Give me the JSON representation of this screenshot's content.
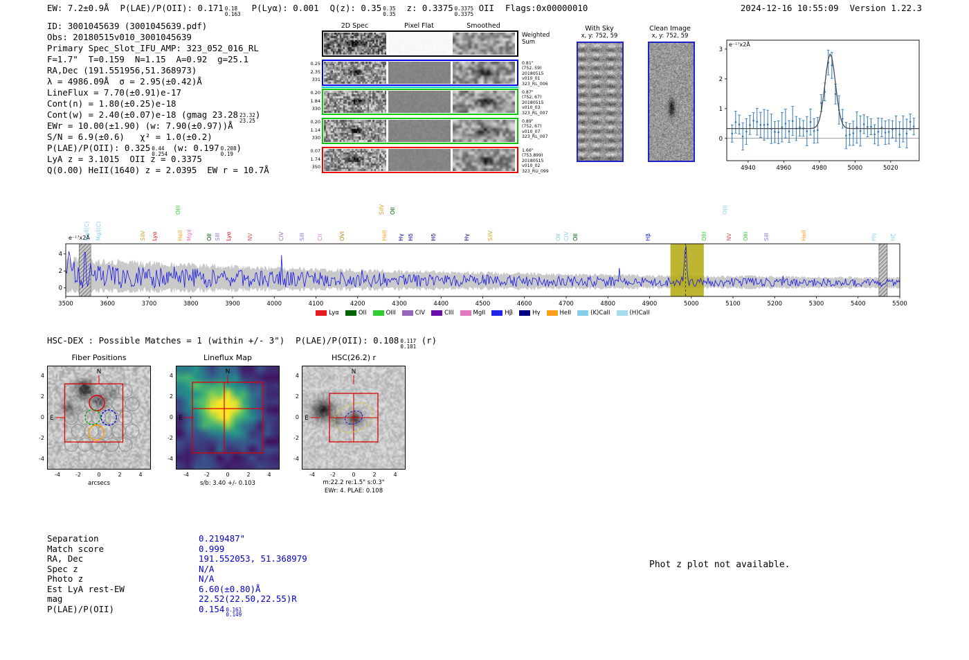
{
  "header": {
    "ew": "EW: 7.2±0.9Å",
    "plae_label": "P(LAE)/P(OII):",
    "plae": {
      "main": "0.171",
      "hi": "0.18",
      "lo": "0.163"
    },
    "plya": "P(Lyα): 0.001",
    "qz_label": "Q(z):",
    "qz": {
      "main": "0.35",
      "hi": "0.35",
      "lo": "0.35"
    },
    "z_label": "z:",
    "z": {
      "main": "0.3375",
      "hi": "0.3375",
      "lo": "0.3375"
    },
    "z_type": "OII",
    "flags": "Flags:0x00000010",
    "datetime": "2024-12-16 10:55:09",
    "version": "Version 1.22.3"
  },
  "info": {
    "id": "ID: 3001045639 (3001045639.pdf)",
    "obs": "Obs: 20180515v010_3001045639",
    "primary": "Primary Spec_Slot_IFU_AMP: 323_052_016_RL",
    "fta": "F=1.7\"  T=0.159  N=1.15  A=0.92  g=25.1",
    "radec": "RA,Dec (191.551956,51.368973)",
    "lambda_sigma": "λ = 4986.09Å  σ = 2.95(±0.42)Å",
    "lineflux": "LineFlux = 7.70(±0.91)e-17",
    "cont_n": "Cont(n) = 1.80(±0.25)e-18",
    "cont_w": {
      "prefix": "Cont(w) = 2.40(±0.07)e-18 (gmag 23.28",
      "hi": "23.32",
      "lo": "23.25",
      "suffix": ")"
    },
    "ewr": "EWr = 10.00(±1.90) (w: 7.90(±0.97))Å",
    "sn_chi2": "S/N = 6.9(±0.6)   χ² = 1.0(±0.2)",
    "plae": {
      "prefix": "P(LAE)/P(OII): 0.325",
      "hi1": "0.44",
      "lo1": "0.254",
      "mid": " (w: 0.197",
      "hi2": "0.208",
      "lo2": "0.19",
      "suffix": ")"
    },
    "zline": "LyA z = 3.1015  OII z = 0.3375",
    "qline": "Q(0.00) HeII(1640) z = 2.0395  EW r = 10.7Å"
  },
  "spec2d": {
    "col_headers": [
      "2D Spec",
      "Pixel Flat",
      "Smoothed"
    ],
    "rows": [
      {
        "border": "#000000",
        "left": [],
        "right": [
          "Weighted",
          "Sum"
        ],
        "big_right": true
      },
      {
        "border": "#0000ee",
        "left": [
          "0.25",
          "2.35",
          "331"
        ],
        "right": [
          "0.81\"",
          "(752, 59)",
          "20180515",
          "v010_01",
          "323_RL_006"
        ]
      },
      {
        "border": "#00cc00",
        "topline": "#00cccc",
        "left": [
          "0.20",
          "1.84",
          "330"
        ],
        "right": [
          "0.87\"",
          "(752, 67)",
          "20180515",
          "v010_03",
          "323_RL_007"
        ]
      },
      {
        "border": "#00cc00",
        "left": [
          "0.20",
          "1.14",
          "330"
        ],
        "right": [
          "0.89\"",
          "(752, 67)",
          "v010_07",
          "323_RL_007"
        ]
      },
      {
        "border": "#ee0000",
        "left": [
          "0.07",
          "1.74",
          "350"
        ],
        "right": [
          "1.66\"",
          "(753.899)",
          "20180515",
          "v010_02",
          "323_RU_099"
        ]
      }
    ]
  },
  "withsky": {
    "title": "With Sky",
    "coords": "x, y: 752, 59"
  },
  "clean": {
    "title": "Clean Image",
    "coords": "x, y: 752, 59"
  },
  "hsc_dex": {
    "prefix": "HSC-DEX : Possible Matches = 1 (within +/- 3\")",
    "plae_label": "P(LAE)/P(OII):",
    "plae": {
      "main": "0.108",
      "hi": "0.117",
      "lo": "0.101"
    },
    "suffix": "(r)"
  },
  "cutouts": {
    "compass": {
      "n": "N",
      "e": "E"
    },
    "axis_ticks": [
      -4,
      -2,
      0,
      2,
      4
    ],
    "fiber": {
      "title": "Fiber Positions",
      "xlabel": "arcsecs"
    },
    "lineflux": {
      "title": "Lineflux Map",
      "caption": "s/b: 3.40 +/- 0.103"
    },
    "hsc": {
      "title": "HSC(26.2) r",
      "caption1": "m:22.2 re:1.5\" s:0.3\"",
      "caption2": "EWr: 4. PLAE: 0.108"
    }
  },
  "match_table": {
    "rows": [
      {
        "label": "Separation",
        "value": "0.219487\""
      },
      {
        "label": "Match score",
        "value": "0.999"
      },
      {
        "label": "RA, Dec",
        "value": "191.552053, 51.368979"
      },
      {
        "label": "Spec z",
        "value": "N/A"
      },
      {
        "label": "Photo z",
        "value": "N/A"
      },
      {
        "label": "Est LyA rest-EW",
        "value": "6.60(±0.80)Å"
      },
      {
        "label": "mag",
        "value": "22.52(22.50,22.55)R"
      },
      {
        "label": "P(LAE)/P(OII)",
        "value": "0.154",
        "hi": "0.161",
        "lo": "0.149"
      }
    ]
  },
  "photz_note": "Phot z plot not available.",
  "chart_data": [
    {
      "id": "emission-line-fit",
      "type": "line",
      "corner_label": "e⁻¹⁷x2Å",
      "xlim": [
        4928,
        5036
      ],
      "ylim": [
        -0.75,
        3.3
      ],
      "xticks": [
        4940,
        4960,
        4980,
        5000,
        5020
      ],
      "yticks": [
        0,
        1,
        2,
        3
      ],
      "series": [
        {
          "name": "observed spectrum",
          "style": "errorbar",
          "color": "#2e75b6",
          "continuum": 0.33,
          "noise_sigma": 0.27,
          "errorbar_size": 0.38,
          "step": 2
        },
        {
          "name": "gaussian fit",
          "style": "line",
          "color": "#4a4a4a",
          "center": 4986.09,
          "sigma": 2.95,
          "peak": 2.5,
          "continuum": 0.33
        }
      ]
    },
    {
      "id": "full-spectrum",
      "type": "line",
      "corner_label": "e⁻¹⁷x2Å",
      "xlim": [
        3500,
        5500
      ],
      "ylim": [
        -1.0,
        5.2
      ],
      "xticks": [
        3500,
        3600,
        3700,
        3800,
        3900,
        4000,
        4100,
        4200,
        4300,
        4400,
        4500,
        4600,
        4700,
        4800,
        4900,
        5000,
        5100,
        5200,
        5300,
        5400,
        5500
      ],
      "yticks": [
        0,
        2,
        4
      ],
      "line_color": "#1414e8",
      "error_band_color": "#c9c9c9",
      "emission_peak": {
        "center": 4986.09,
        "sigma": 2.95,
        "peak": 4.35
      },
      "highlight_band": {
        "x0": 4950,
        "x1": 5030,
        "color": "#b3a80c",
        "opacity": 0.85
      },
      "masked_bands": [
        [
          3532,
          3560
        ],
        [
          5450,
          5470
        ]
      ],
      "marker_wavelength": 4986.09,
      "line_labels": [
        {
          "wave": 3538,
          "label": "MgII(C)",
          "color": "#87ceeb",
          "raised": false
        },
        {
          "wave": 3566,
          "label": "MgII(C)",
          "color": "#87ceeb",
          "raised": false
        },
        {
          "wave": 3672,
          "label": "SiIV",
          "color": "#daa520",
          "raised": false
        },
        {
          "wave": 3700,
          "label": "Lyα",
          "color": "#e41a1c",
          "raised": false
        },
        {
          "wave": 3757,
          "label": "OIII",
          "color": "#32cd32",
          "raised": true
        },
        {
          "wave": 3762,
          "label": "HeII",
          "color": "#ff9d1c",
          "raised": false
        },
        {
          "wave": 3783,
          "label": "MgII",
          "color": "#e377c2",
          "raised": false
        },
        {
          "wave": 3832,
          "label": "OII",
          "color": "#006400",
          "raised": false
        },
        {
          "wave": 3852,
          "label": "SiII",
          "color": "#9370db",
          "raised": false
        },
        {
          "wave": 3878,
          "label": "Lyα",
          "color": "#e41a1c",
          "raised": false
        },
        {
          "wave": 3930,
          "label": "NV",
          "color": "#cd5c5c",
          "raised": false
        },
        {
          "wave": 4004,
          "label": "CIV",
          "color": "#9467bd",
          "raised": false
        },
        {
          "wave": 4055,
          "label": "SiII",
          "color": "#9370db",
          "raised": false
        },
        {
          "wave": 4098,
          "label": "CII",
          "color": "#da70d6",
          "raised": false
        },
        {
          "wave": 4150,
          "label": "OVI",
          "color": "#b8860b",
          "raised": false
        },
        {
          "wave": 4245,
          "label": "SiIV",
          "color": "#daa520",
          "raised": true
        },
        {
          "wave": 4252,
          "label": "HeII",
          "color": "#ff9d1c",
          "raised": false
        },
        {
          "wave": 4272,
          "label": "OII",
          "color": "#006400",
          "raised": true
        },
        {
          "wave": 4292,
          "label": "Hγ",
          "color": "#00007f",
          "raised": false
        },
        {
          "wave": 4315,
          "label": "Hδ",
          "color": "#00008b",
          "raised": false
        },
        {
          "wave": 4370,
          "label": "Hδ",
          "color": "#00008b",
          "raised": false
        },
        {
          "wave": 4450,
          "label": "Hγ",
          "color": "#00007f",
          "raised": false
        },
        {
          "wave": 4505,
          "label": "SiIV",
          "color": "#daa520",
          "raised": false
        },
        {
          "wave": 4668,
          "label": "OII",
          "color": "#87ceeb",
          "raised": false
        },
        {
          "wave": 4688,
          "label": "CIV",
          "color": "#87ceeb",
          "raised": false
        },
        {
          "wave": 4710,
          "label": "OII",
          "color": "#006400",
          "raised": false
        },
        {
          "wave": 4885,
          "label": "Hβ",
          "color": "#2424e8",
          "raised": false
        },
        {
          "wave": 5018,
          "label": "OIII",
          "color": "#32cd32",
          "raised": false
        },
        {
          "wave": 5068,
          "label": "OIII",
          "color": "#87ceeb",
          "raised": true
        },
        {
          "wave": 5078,
          "label": "NV",
          "color": "#cd5c5c",
          "raised": false
        },
        {
          "wave": 5118,
          "label": "OIII",
          "color": "#32cd32",
          "raised": false
        },
        {
          "wave": 5168,
          "label": "SiII",
          "color": "#9370db",
          "raised": false
        },
        {
          "wave": 5258,
          "label": "HeII",
          "color": "#ff9d1c",
          "raised": false
        },
        {
          "wave": 5425,
          "label": "Hη",
          "color": "#87ceeb",
          "raised": false
        },
        {
          "wave": 5472,
          "label": "Hζ",
          "color": "#87ceeb",
          "raised": false
        }
      ],
      "legend": [
        {
          "label": "Lyα",
          "color": "#e41a1c"
        },
        {
          "label": "OII",
          "color": "#006400"
        },
        {
          "label": "OIII",
          "color": "#32cd32"
        },
        {
          "label": "CIV",
          "color": "#9467bd"
        },
        {
          "label": "CIII",
          "color": "#6a0dad"
        },
        {
          "label": "MgII",
          "color": "#e377c2"
        },
        {
          "label": "Hβ",
          "color": "#2424e8"
        },
        {
          "label": "Hγ",
          "color": "#00007f"
        },
        {
          "label": "HeII",
          "color": "#ff9d1c"
        },
        {
          "label": "(K)CaII",
          "color": "#87ceeb"
        },
        {
          "label": "(H)CaII",
          "color": "#a7dcec"
        }
      ],
      "legend_position": "bottom"
    }
  ]
}
